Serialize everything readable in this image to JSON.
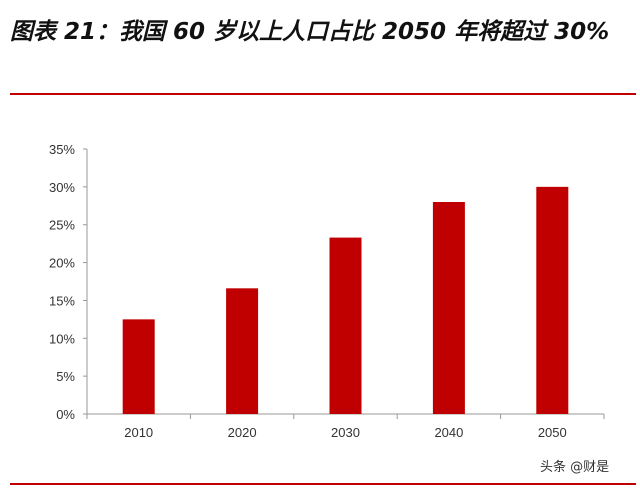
{
  "title": "图表 21：我国 60 岁以上人口占比 2050 年将超过 30%",
  "watermark": "头条 @财是",
  "chart_data": {
    "type": "bar",
    "categories": [
      "2010",
      "2020",
      "2030",
      "2040",
      "2050"
    ],
    "values": [
      12.5,
      16.6,
      23.3,
      28.0,
      30.0
    ],
    "ylim": [
      0,
      35
    ],
    "yticks": [
      0,
      5,
      10,
      15,
      20,
      25,
      30,
      35
    ],
    "ytick_labels": [
      "0%",
      "5%",
      "10%",
      "15%",
      "20%",
      "25%",
      "30%",
      "35%"
    ],
    "bar_color": "#c00000",
    "grid": false,
    "legend": "none"
  }
}
